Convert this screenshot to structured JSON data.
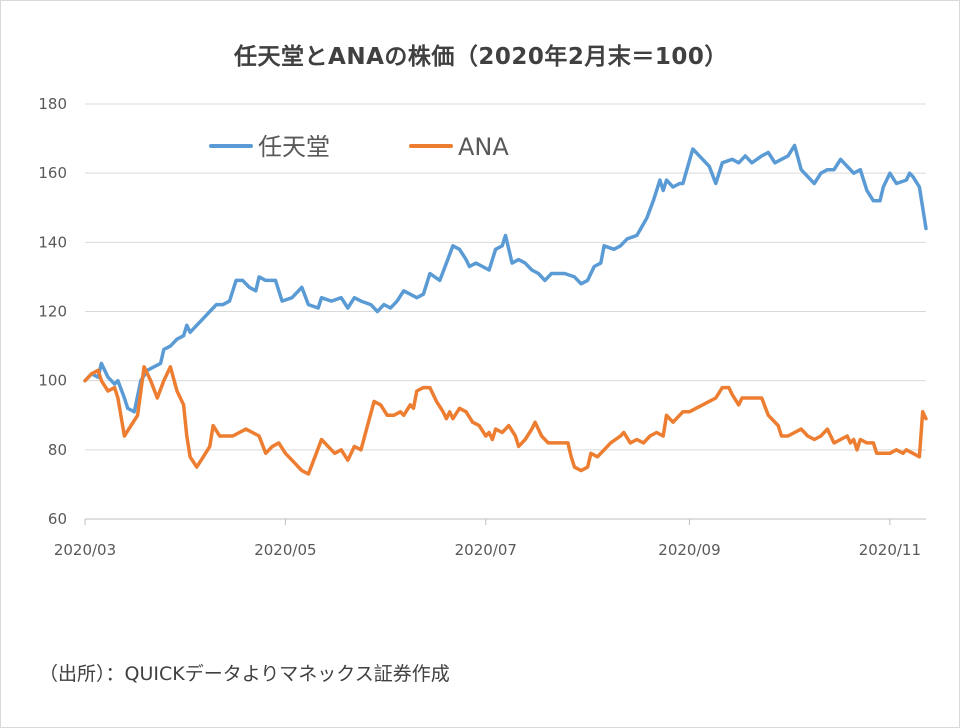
{
  "chart_data": {
    "type": "line",
    "title": "任天堂とANAの株価（2020年2月末＝100）",
    "y_ticks": [
      "60",
      "80",
      "100",
      "120",
      "140",
      "160",
      "180"
    ],
    "ylim": [
      60,
      180
    ],
    "x_ticks": [
      {
        "label": "2020/03",
        "x": 0
      },
      {
        "label": "2020/05",
        "x": 61
      },
      {
        "label": "2020/07",
        "x": 122
      },
      {
        "label": "2020/09",
        "x": 184
      },
      {
        "label": "2020/11",
        "x": 245
      }
    ],
    "xlim": [
      0,
      256
    ],
    "legend_position": "top-left",
    "series": [
      {
        "name": "任天堂",
        "color": "#5b9bd5",
        "points": [
          [
            0,
            100
          ],
          [
            2,
            102
          ],
          [
            4,
            101
          ],
          [
            5,
            105
          ],
          [
            7,
            101
          ],
          [
            9,
            99
          ],
          [
            10,
            100
          ],
          [
            12,
            95
          ],
          [
            13,
            92
          ],
          [
            15,
            91
          ],
          [
            17,
            100
          ],
          [
            19,
            103
          ],
          [
            21,
            104
          ],
          [
            23,
            105
          ],
          [
            24,
            109
          ],
          [
            26,
            110
          ],
          [
            28,
            112
          ],
          [
            30,
            113
          ],
          [
            31,
            116
          ],
          [
            32,
            114
          ],
          [
            34,
            116
          ],
          [
            36,
            118
          ],
          [
            38,
            120
          ],
          [
            40,
            122
          ],
          [
            42,
            122
          ],
          [
            44,
            123
          ],
          [
            46,
            129
          ],
          [
            48,
            129
          ],
          [
            50,
            127
          ],
          [
            52,
            126
          ],
          [
            53,
            130
          ],
          [
            55,
            129
          ],
          [
            58,
            129
          ],
          [
            60,
            123
          ],
          [
            63,
            124
          ],
          [
            66,
            127
          ],
          [
            68,
            122
          ],
          [
            71,
            121
          ],
          [
            72,
            124
          ],
          [
            75,
            123
          ],
          [
            78,
            124
          ],
          [
            80,
            121
          ],
          [
            82,
            124
          ],
          [
            84,
            123
          ],
          [
            87,
            122
          ],
          [
            89,
            120
          ],
          [
            91,
            122
          ],
          [
            93,
            121
          ],
          [
            95,
            123
          ],
          [
            97,
            126
          ],
          [
            99,
            125
          ],
          [
            101,
            124
          ],
          [
            103,
            125
          ],
          [
            105,
            131
          ],
          [
            108,
            129
          ],
          [
            110,
            134
          ],
          [
            112,
            139
          ],
          [
            114,
            138
          ],
          [
            116,
            135
          ],
          [
            117,
            133
          ],
          [
            119,
            134
          ],
          [
            121,
            133
          ],
          [
            123,
            132
          ],
          [
            125,
            138
          ],
          [
            127,
            139
          ],
          [
            128,
            142
          ],
          [
            130,
            134
          ],
          [
            132,
            135
          ],
          [
            134,
            134
          ],
          [
            136,
            132
          ],
          [
            138,
            131
          ],
          [
            140,
            129
          ],
          [
            142,
            131
          ],
          [
            144,
            131
          ],
          [
            146,
            131
          ],
          [
            149,
            130
          ],
          [
            151,
            128
          ],
          [
            153,
            129
          ],
          [
            155,
            133
          ],
          [
            157,
            134
          ],
          [
            158,
            139
          ],
          [
            161,
            138
          ],
          [
            163,
            139
          ],
          [
            165,
            141
          ],
          [
            168,
            142
          ],
          [
            171,
            147
          ],
          [
            173,
            152
          ],
          [
            175,
            158
          ],
          [
            176,
            155
          ],
          [
            177,
            158
          ],
          [
            179,
            156
          ],
          [
            181,
            157
          ],
          [
            182,
            157
          ],
          [
            185,
            167
          ],
          [
            188,
            164
          ],
          [
            190,
            162
          ],
          [
            192,
            157
          ],
          [
            194,
            163
          ],
          [
            197,
            164
          ],
          [
            199,
            163
          ],
          [
            201,
            165
          ],
          [
            203,
            163
          ],
          [
            206,
            165
          ],
          [
            208,
            166
          ],
          [
            210,
            163
          ],
          [
            212,
            164
          ],
          [
            214,
            165
          ],
          [
            216,
            168
          ],
          [
            218,
            161
          ],
          [
            220,
            159
          ],
          [
            222,
            157
          ],
          [
            224,
            160
          ],
          [
            226,
            161
          ],
          [
            228,
            161
          ],
          [
            230,
            164
          ],
          [
            232,
            162
          ],
          [
            234,
            160
          ],
          [
            236,
            161
          ],
          [
            238,
            155
          ],
          [
            240,
            152
          ],
          [
            242,
            152
          ],
          [
            243,
            156
          ],
          [
            244,
            158
          ],
          [
            245,
            160
          ],
          [
            247,
            157
          ],
          [
            250,
            158
          ],
          [
            251,
            160
          ],
          [
            252,
            159
          ],
          [
            254,
            156
          ],
          [
            256,
            144
          ]
        ]
      },
      {
        "name": "ANA",
        "color": "#ed7d31",
        "points": [
          [
            0,
            100
          ],
          [
            2,
            102
          ],
          [
            4,
            103
          ],
          [
            5,
            100
          ],
          [
            7,
            97
          ],
          [
            9,
            98
          ],
          [
            10,
            95
          ],
          [
            12,
            84
          ],
          [
            14,
            87
          ],
          [
            16,
            90
          ],
          [
            18,
            104
          ],
          [
            20,
            100
          ],
          [
            22,
            95
          ],
          [
            24,
            100
          ],
          [
            26,
            104
          ],
          [
            28,
            97
          ],
          [
            30,
            93
          ],
          [
            31,
            84
          ],
          [
            32,
            78
          ],
          [
            34,
            75
          ],
          [
            36,
            78
          ],
          [
            38,
            81
          ],
          [
            39,
            87
          ],
          [
            41,
            84
          ],
          [
            43,
            84
          ],
          [
            45,
            84
          ],
          [
            47,
            85
          ],
          [
            49,
            86
          ],
          [
            51,
            85
          ],
          [
            53,
            84
          ],
          [
            55,
            79
          ],
          [
            57,
            81
          ],
          [
            59,
            82
          ],
          [
            61,
            79
          ],
          [
            63,
            77
          ],
          [
            66,
            74
          ],
          [
            68,
            73
          ],
          [
            70,
            78
          ],
          [
            72,
            83
          ],
          [
            74,
            81
          ],
          [
            76,
            79
          ],
          [
            78,
            80
          ],
          [
            80,
            77
          ],
          [
            82,
            81
          ],
          [
            84,
            80
          ],
          [
            86,
            87
          ],
          [
            88,
            94
          ],
          [
            90,
            93
          ],
          [
            92,
            90
          ],
          [
            94,
            90
          ],
          [
            96,
            91
          ],
          [
            97,
            90
          ],
          [
            99,
            93
          ],
          [
            100,
            92
          ],
          [
            101,
            97
          ],
          [
            103,
            98
          ],
          [
            105,
            98
          ],
          [
            107,
            94
          ],
          [
            109,
            91
          ],
          [
            110,
            89
          ],
          [
            111,
            91
          ],
          [
            112,
            89
          ],
          [
            114,
            92
          ],
          [
            116,
            91
          ],
          [
            118,
            88
          ],
          [
            120,
            87
          ],
          [
            122,
            84
          ],
          [
            123,
            85
          ],
          [
            124,
            83
          ],
          [
            125,
            86
          ],
          [
            127,
            85
          ],
          [
            129,
            87
          ],
          [
            131,
            84
          ],
          [
            132,
            81
          ],
          [
            134,
            83
          ],
          [
            136,
            86
          ],
          [
            137,
            88
          ],
          [
            139,
            84
          ],
          [
            141,
            82
          ],
          [
            144,
            82
          ],
          [
            147,
            82
          ],
          [
            148,
            78
          ],
          [
            149,
            75
          ],
          [
            151,
            74
          ],
          [
            153,
            75
          ],
          [
            154,
            79
          ],
          [
            156,
            78
          ],
          [
            158,
            80
          ],
          [
            160,
            82
          ],
          [
            163,
            84
          ],
          [
            164,
            85
          ],
          [
            166,
            82
          ],
          [
            168,
            83
          ],
          [
            170,
            82
          ],
          [
            172,
            84
          ],
          [
            174,
            85
          ],
          [
            176,
            84
          ],
          [
            177,
            90
          ],
          [
            179,
            88
          ],
          [
            182,
            91
          ],
          [
            184,
            91
          ],
          [
            186,
            92
          ],
          [
            188,
            93
          ],
          [
            190,
            94
          ],
          [
            192,
            95
          ],
          [
            194,
            98
          ],
          [
            196,
            98
          ],
          [
            197,
            96
          ],
          [
            199,
            93
          ],
          [
            200,
            95
          ],
          [
            202,
            95
          ],
          [
            206,
            95
          ],
          [
            208,
            90
          ],
          [
            211,
            87
          ],
          [
            212,
            84
          ],
          [
            214,
            84
          ],
          [
            216,
            85
          ],
          [
            218,
            86
          ],
          [
            220,
            84
          ],
          [
            222,
            83
          ],
          [
            224,
            84
          ],
          [
            226,
            86
          ],
          [
            228,
            82
          ],
          [
            230,
            83
          ],
          [
            232,
            84
          ],
          [
            233,
            82
          ],
          [
            234,
            83
          ],
          [
            235,
            80
          ],
          [
            236,
            83
          ],
          [
            238,
            82
          ],
          [
            240,
            82
          ],
          [
            241,
            79
          ],
          [
            243,
            79
          ],
          [
            245,
            79
          ],
          [
            247,
            80
          ],
          [
            249,
            79
          ],
          [
            250,
            80
          ],
          [
            252,
            79
          ],
          [
            254,
            78
          ],
          [
            255,
            91
          ],
          [
            256,
            89
          ]
        ]
      }
    ]
  },
  "source_note": "（出所）：QUICKデータよりマネックス証券作成"
}
